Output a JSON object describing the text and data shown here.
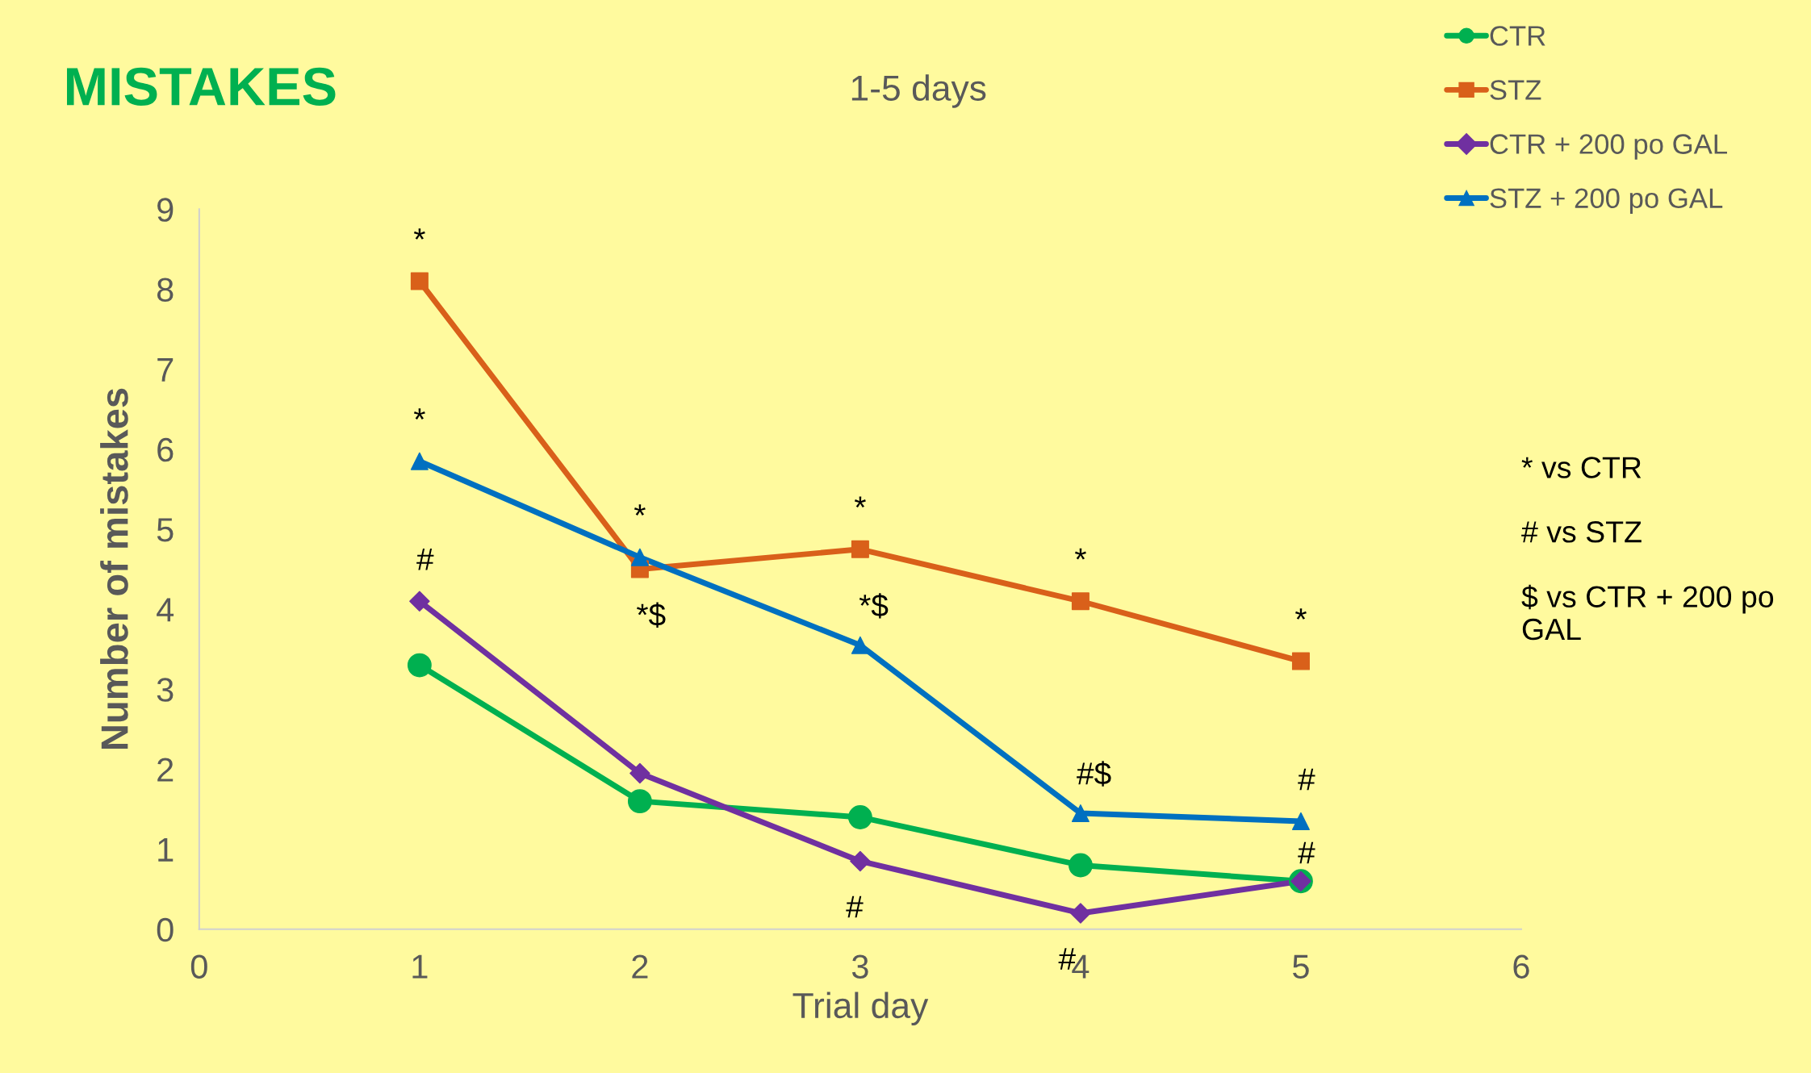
{
  "chart_data": {
    "type": "line",
    "title": "MISTAKES",
    "subtitle": "1-5 days",
    "xlabel": "Trial day",
    "ylabel": "Number of mistakes",
    "x": [
      1,
      2,
      3,
      4,
      5
    ],
    "xlim": [
      0,
      6
    ],
    "xticks": [
      0,
      1,
      2,
      3,
      4,
      5,
      6
    ],
    "ylim": [
      0,
      9
    ],
    "yticks": [
      0,
      1,
      2,
      3,
      4,
      5,
      6,
      7,
      8,
      9
    ],
    "grid": false,
    "legend": "top right",
    "series": [
      {
        "name": "CTR",
        "color": "#00b050",
        "marker": "circle",
        "values": [
          3.3,
          1.6,
          1.4,
          0.8,
          0.6
        ]
      },
      {
        "name": "STZ",
        "color": "#d9601a",
        "marker": "square",
        "values": [
          8.1,
          4.5,
          4.75,
          4.1,
          3.35
        ]
      },
      {
        "name": "CTR + 200 po GAL",
        "color": "#7030a0",
        "marker": "diamond",
        "values": [
          4.1,
          1.95,
          0.85,
          0.2,
          0.6
        ]
      },
      {
        "name": "STZ + 200 po GAL",
        "color": "#0070c0",
        "marker": "triangle",
        "values": [
          5.85,
          4.65,
          3.55,
          1.45,
          1.35
        ]
      }
    ],
    "annotations": [
      {
        "text": "*",
        "x": 1,
        "y": 8.1
      },
      {
        "text": "*",
        "x": 1,
        "y": 5.85
      },
      {
        "text": "#",
        "x": 1,
        "y": 4.1
      },
      {
        "text": "*",
        "x": 2,
        "y": 4.65
      },
      {
        "text": "*$",
        "x": 2,
        "y": 4.5
      },
      {
        "text": "*",
        "x": 3,
        "y": 4.75
      },
      {
        "text": "*$",
        "x": 3,
        "y": 3.55
      },
      {
        "text": "#",
        "x": 3,
        "y": 0.85
      },
      {
        "text": "*",
        "x": 4,
        "y": 4.1
      },
      {
        "text": "#$",
        "x": 4,
        "y": 1.45
      },
      {
        "text": "#",
        "x": 4,
        "y": 0.2
      },
      {
        "text": "*",
        "x": 5,
        "y": 3.35
      },
      {
        "text": "#",
        "x": 5,
        "y": 1.35
      },
      {
        "text": "#",
        "x": 5,
        "y": 0.6
      },
      "* vs CTR",
      "# vs STZ",
      "$ vs CTR + 200 po GAL"
    ]
  }
}
